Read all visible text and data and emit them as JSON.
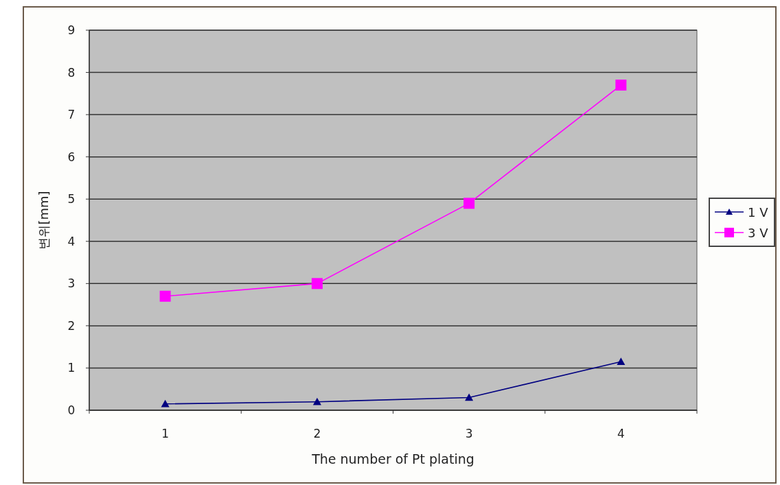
{
  "chart_data": {
    "type": "line",
    "xlabel": "The number of Pt plating",
    "ylabel": "변위[mm]",
    "categories": [
      "1",
      "2",
      "3",
      "4"
    ],
    "series": [
      {
        "name": "1 V",
        "color": "#000080",
        "marker": "triangle",
        "values": [
          0.15,
          0.2,
          0.3,
          1.15
        ]
      },
      {
        "name": "3 V",
        "color": "#ff00ff",
        "marker": "square",
        "values": [
          2.7,
          3.0,
          4.9,
          7.7
        ]
      }
    ],
    "ylim": [
      0,
      9
    ],
    "yticks": [
      0,
      1,
      2,
      3,
      4,
      5,
      6,
      7,
      8,
      9
    ],
    "grid": "y",
    "legend": "right"
  }
}
